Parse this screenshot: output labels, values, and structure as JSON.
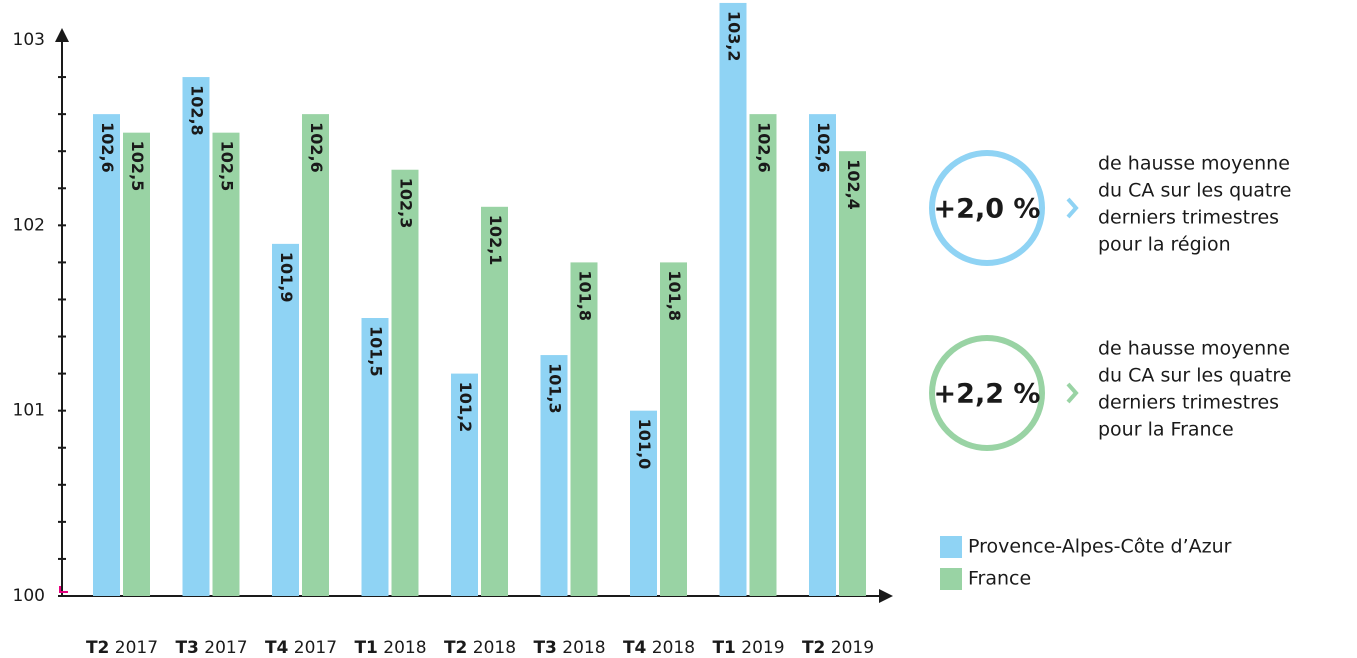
{
  "chart_data": {
    "type": "bar",
    "categories": [
      "T2 2017",
      "T3 2017",
      "T4 2017",
      "T1 2018",
      "T2 2018",
      "T3 2018",
      "T4 2018",
      "T1 2019",
      "T2 2019"
    ],
    "series": [
      {
        "name": "Provence-Alpes-Côte d’Azur",
        "color": "#8fd3f4",
        "values": [
          102.6,
          102.8,
          101.9,
          101.5,
          101.2,
          101.3,
          101.0,
          103.2,
          102.6
        ],
        "value_labels": [
          "102,6",
          "102,8",
          "101,9",
          "101,5",
          "101,2",
          "101,3",
          "101,0",
          "103,2",
          "102,6"
        ]
      },
      {
        "name": "France",
        "color": "#99d3a4",
        "values": [
          102.5,
          102.5,
          102.6,
          102.3,
          102.1,
          101.8,
          101.8,
          102.6,
          102.4
        ],
        "value_labels": [
          "102,5",
          "102,5",
          "102,6",
          "102,3",
          "102,1",
          "101,8",
          "101,8",
          "102,6",
          "102,4"
        ]
      }
    ],
    "ylim": [
      100,
      103
    ],
    "yticks": [
      100,
      101,
      102,
      103
    ],
    "yminor_ticks": [
      100.2,
      100.4,
      100.6,
      100.8,
      101.2,
      101.4,
      101.6,
      101.8,
      102.2,
      102.4,
      102.6,
      102.8
    ],
    "annotations": [
      {
        "value": "+2,0 %",
        "color": "#8fd3f4",
        "lines": [
          "de hausse moyenne",
          "du CA sur les quatre",
          "derniers trimestres",
          "pour la région"
        ]
      },
      {
        "value": "+2,2 %",
        "color": "#99d3a4",
        "lines": [
          "de hausse moyenne",
          "du CA sur les quatre",
          "derniers trimestres",
          "pour la France"
        ]
      }
    ]
  }
}
